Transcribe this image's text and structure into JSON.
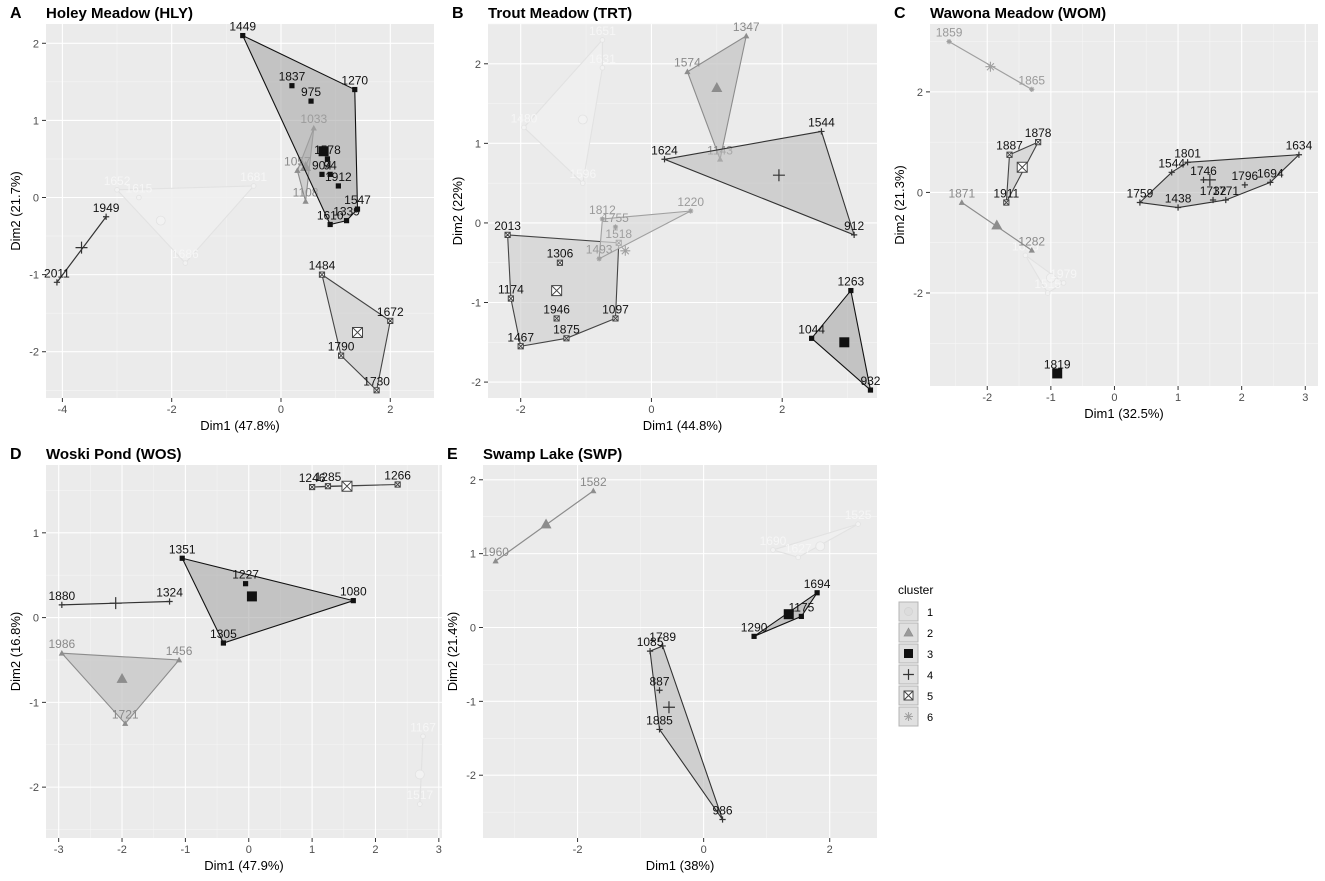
{
  "legend": {
    "title": "cluster",
    "entries": [
      {
        "label": "1",
        "symbol": "dot",
        "fill": "#dcdcdc",
        "stroke": "#d2d2d2"
      },
      {
        "label": "2",
        "symbol": "triangle",
        "fill": "#9a9a9a",
        "stroke": "#8a8a8a"
      },
      {
        "label": "3",
        "symbol": "square",
        "fill": "#111111",
        "stroke": "#111111"
      },
      {
        "label": "4",
        "symbol": "plus",
        "fill": "#444444",
        "stroke": "#333333"
      },
      {
        "label": "5",
        "symbol": "boxx",
        "fill": "#777777",
        "stroke": "#444444"
      },
      {
        "label": "6",
        "symbol": "asterisk",
        "fill": "#c4c4c4",
        "stroke": "#a2a2a2"
      }
    ]
  },
  "chart_data": [
    {
      "type": "scatter",
      "panel_letter": "A",
      "title": "Holey Meadow (HLY)",
      "xlabel": "Dim1 (47.8%)",
      "ylabel": "Dim2 (21.7%)",
      "xlim": [
        -4.3,
        2.8
      ],
      "ylim": [
        -2.6,
        2.25
      ],
      "xticks": [
        -4,
        -2,
        0,
        2
      ],
      "yticks": [
        -2,
        -1,
        0,
        1,
        2
      ],
      "grid": true,
      "clusters": [
        {
          "cluster": "1",
          "centroid": [
            -2.2,
            -0.3
          ],
          "points": [
            {
              "label": "1652",
              "x": -3.0,
              "y": 0.1
            },
            {
              "label": "1681",
              "x": -0.5,
              "y": 0.15
            },
            {
              "label": "1686",
              "x": -1.75,
              "y": -0.85
            },
            {
              "label": "1615",
              "x": -2.6,
              "y": 0.0
            }
          ]
        },
        {
          "cluster": "2",
          "centroid": [
            0.45,
            0.4
          ],
          "points": [
            {
              "label": "1033",
              "x": 0.6,
              "y": 0.9
            },
            {
              "label": "1057",
              "x": 0.3,
              "y": 0.35
            },
            {
              "label": "1108",
              "x": 0.45,
              "y": -0.05
            }
          ]
        },
        {
          "cluster": "3",
          "centroid": [
            0.78,
            0.6
          ],
          "points": [
            {
              "label": "1449",
              "x": -0.7,
              "y": 2.1
            },
            {
              "label": "1837",
              "x": 0.2,
              "y": 1.45
            },
            {
              "label": "975",
              "x": 0.55,
              "y": 1.25
            },
            {
              "label": "1270",
              "x": 1.35,
              "y": 1.4
            },
            {
              "label": "1578",
              "x": 0.85,
              "y": 0.5
            },
            {
              "label": "904",
              "x": 0.75,
              "y": 0.3
            },
            {
              "label": "94",
              "x": 0.9,
              "y": 0.3
            },
            {
              "label": "1912",
              "x": 1.05,
              "y": 0.15
            },
            {
              "label": "1547",
              "x": 1.4,
              "y": -0.15
            },
            {
              "label": "1339",
              "x": 1.2,
              "y": -0.3
            },
            {
              "label": "1610",
              "x": 0.9,
              "y": -0.35
            }
          ]
        },
        {
          "cluster": "4",
          "centroid": [
            -3.65,
            -0.65
          ],
          "points": [
            {
              "label": "1949",
              "x": -3.2,
              "y": -0.25
            },
            {
              "label": "2011",
              "x": -4.1,
              "y": -1.1
            }
          ]
        },
        {
          "cluster": "5",
          "centroid": [
            1.4,
            -1.75
          ],
          "points": [
            {
              "label": "1484",
              "x": 0.75,
              "y": -1.0
            },
            {
              "label": "1672",
              "x": 2.0,
              "y": -1.6
            },
            {
              "label": "1790",
              "x": 1.1,
              "y": -2.05
            },
            {
              "label": "1730",
              "x": 1.75,
              "y": -2.5
            }
          ]
        }
      ]
    },
    {
      "type": "scatter",
      "panel_letter": "B",
      "title": "Trout Meadow (TRT)",
      "xlabel": "Dim1 (44.8%)",
      "ylabel": "Dim2 (22%)",
      "xlim": [
        -2.5,
        3.45
      ],
      "ylim": [
        -2.2,
        2.5
      ],
      "xticks": [
        -2,
        0,
        2
      ],
      "yticks": [
        -2,
        -1,
        0,
        1,
        2
      ],
      "grid": true,
      "clusters": [
        {
          "cluster": "1",
          "centroid": [
            -1.05,
            1.3
          ],
          "points": [
            {
              "label": "1651",
              "x": -0.75,
              "y": 2.3
            },
            {
              "label": "1631",
              "x": -0.75,
              "y": 1.95
            },
            {
              "label": "1480",
              "x": -1.95,
              "y": 1.2
            },
            {
              "label": "1596",
              "x": -1.05,
              "y": 0.5
            }
          ]
        },
        {
          "cluster": "2",
          "centroid": [
            1.0,
            1.7
          ],
          "points": [
            {
              "label": "1347",
              "x": 1.45,
              "y": 2.35
            },
            {
              "label": "1574",
              "x": 0.55,
              "y": 1.9
            },
            {
              "label": "1143",
              "x": 1.05,
              "y": 0.8
            }
          ]
        },
        {
          "cluster": "3",
          "centroid": [
            2.95,
            -1.5
          ],
          "points": [
            {
              "label": "1263",
              "x": 3.05,
              "y": -0.85
            },
            {
              "label": "1044",
              "x": 2.45,
              "y": -1.45
            },
            {
              "label": "932",
              "x": 3.35,
              "y": -2.1
            }
          ]
        },
        {
          "cluster": "4",
          "centroid": [
            1.95,
            0.6
          ],
          "points": [
            {
              "label": "1624",
              "x": 0.2,
              "y": 0.8
            },
            {
              "label": "1544",
              "x": 2.6,
              "y": 1.15
            },
            {
              "label": "912",
              "x": 3.1,
              "y": -0.15
            }
          ]
        },
        {
          "cluster": "5",
          "centroid": [
            -1.45,
            -0.85
          ],
          "points": [
            {
              "label": "2013",
              "x": -2.2,
              "y": -0.15
            },
            {
              "label": "1306",
              "x": -1.4,
              "y": -0.5
            },
            {
              "label": "1518",
              "x": -0.5,
              "y": -0.25
            },
            {
              "label": "1174",
              "x": -2.15,
              "y": -0.95
            },
            {
              "label": "1946",
              "x": -1.45,
              "y": -1.2
            },
            {
              "label": "1097",
              "x": -0.55,
              "y": -1.2
            },
            {
              "label": "1875",
              "x": -1.3,
              "y": -1.45
            },
            {
              "label": "1467",
              "x": -2.0,
              "y": -1.55
            }
          ]
        },
        {
          "cluster": "6",
          "centroid": [
            -0.4,
            -0.35
          ],
          "points": [
            {
              "label": "1812",
              "x": -0.75,
              "y": 0.05
            },
            {
              "label": "1755",
              "x": -0.55,
              "y": -0.05
            },
            {
              "label": "1220",
              "x": 0.6,
              "y": 0.15
            },
            {
              "label": "1493",
              "x": -0.8,
              "y": -0.45
            }
          ]
        }
      ]
    },
    {
      "type": "scatter",
      "panel_letter": "C",
      "title": "Wawona Meadow (WOM)",
      "xlabel": "Dim1 (32.5%)",
      "ylabel": "Dim2 (21.3%)",
      "xlim": [
        -2.9,
        3.2
      ],
      "ylim": [
        -3.85,
        3.35
      ],
      "xticks": [
        -2,
        -1,
        0,
        1,
        2,
        3
      ],
      "yticks": [
        -2,
        0,
        2
      ],
      "grid": true,
      "clusters": [
        {
          "cluster": "1",
          "centroid": [
            -1.0,
            -1.7
          ],
          "points": [
            {
              "label": "1605",
              "x": -1.4,
              "y": -1.25
            },
            {
              "label": "1979",
              "x": -0.8,
              "y": -1.8
            },
            {
              "label": "1515",
              "x": -1.05,
              "y": -2.0
            }
          ]
        },
        {
          "cluster": "2",
          "centroid": [
            -1.85,
            -0.65
          ],
          "points": [
            {
              "label": "1871",
              "x": -2.4,
              "y": -0.2
            },
            {
              "label": "1282",
              "x": -1.3,
              "y": -1.15
            }
          ]
        },
        {
          "cluster": "3",
          "centroid": [
            -0.9,
            -3.6
          ],
          "points": [
            {
              "label": "1819",
              "x": -0.9,
              "y": -3.6
            }
          ]
        },
        {
          "cluster": "4",
          "centroid": [
            1.5,
            0.25
          ],
          "points": [
            {
              "label": "1634",
              "x": 2.9,
              "y": 0.75
            },
            {
              "label": "1801",
              "x": 1.15,
              "y": 0.6
            },
            {
              "label": "1544",
              "x": 0.9,
              "y": 0.4
            },
            {
              "label": "1746",
              "x": 1.4,
              "y": 0.25
            },
            {
              "label": "1796",
              "x": 2.05,
              "y": 0.15
            },
            {
              "label": "1694",
              "x": 2.45,
              "y": 0.2
            },
            {
              "label": "1759",
              "x": 0.4,
              "y": -0.2
            },
            {
              "label": "1438",
              "x": 1.0,
              "y": -0.3
            },
            {
              "label": "1732",
              "x": 1.55,
              "y": -0.15
            },
            {
              "label": "1771",
              "x": 1.75,
              "y": -0.15
            }
          ]
        },
        {
          "cluster": "5",
          "centroid": [
            -1.45,
            0.5
          ],
          "points": [
            {
              "label": "1887",
              "x": -1.65,
              "y": 0.75
            },
            {
              "label": "1878",
              "x": -1.2,
              "y": 1.0
            },
            {
              "label": "1911",
              "x": -1.7,
              "y": -0.2
            }
          ]
        },
        {
          "cluster": "6",
          "centroid": [
            -1.95,
            2.5
          ],
          "points": [
            {
              "label": "1859",
              "x": -2.6,
              "y": 3.0
            },
            {
              "label": "1865",
              "x": -1.3,
              "y": 2.05
            }
          ]
        }
      ]
    },
    {
      "type": "scatter",
      "panel_letter": "D",
      "title": "Woski Pond (WOS)",
      "xlabel": "Dim1 (47.9%)",
      "ylabel": "Dim2 (16.8%)",
      "xlim": [
        -3.2,
        3.05
      ],
      "ylim": [
        -2.6,
        1.8
      ],
      "xticks": [
        -3,
        -2,
        -1,
        0,
        1,
        2,
        3
      ],
      "yticks": [
        -2,
        -1,
        0,
        1
      ],
      "grid": true,
      "clusters": [
        {
          "cluster": "1",
          "centroid": [
            2.7,
            -1.85
          ],
          "points": [
            {
              "label": "1167",
              "x": 2.75,
              "y": -1.4
            },
            {
              "label": "1517",
              "x": 2.7,
              "y": -2.2
            }
          ]
        },
        {
          "cluster": "2",
          "centroid": [
            -2.0,
            -0.72
          ],
          "points": [
            {
              "label": "1986",
              "x": -2.95,
              "y": -0.42
            },
            {
              "label": "1456",
              "x": -1.1,
              "y": -0.5
            },
            {
              "label": "1721",
              "x": -1.95,
              "y": -1.25
            }
          ]
        },
        {
          "cluster": "3",
          "centroid": [
            0.05,
            0.25
          ],
          "points": [
            {
              "label": "1351",
              "x": -1.05,
              "y": 0.7
            },
            {
              "label": "1227",
              "x": -0.05,
              "y": 0.4
            },
            {
              "label": "1080",
              "x": 1.65,
              "y": 0.2
            },
            {
              "label": "1305",
              "x": -0.4,
              "y": -0.3
            }
          ]
        },
        {
          "cluster": "4",
          "centroid": [
            -2.1,
            0.17
          ],
          "points": [
            {
              "label": "1880",
              "x": -2.95,
              "y": 0.15
            },
            {
              "label": "1324",
              "x": -1.25,
              "y": 0.19
            }
          ]
        },
        {
          "cluster": "5",
          "centroid": [
            1.55,
            1.55
          ],
          "points": [
            {
              "label": "1246",
              "x": 1.0,
              "y": 1.54
            },
            {
              "label": "1285",
              "x": 1.25,
              "y": 1.55
            },
            {
              "label": "1266",
              "x": 2.35,
              "y": 1.57
            }
          ]
        }
      ]
    },
    {
      "type": "scatter",
      "panel_letter": "E",
      "title": "Swamp Lake (SWP)",
      "xlabel": "Dim1 (38%)",
      "ylabel": "Dim2 (21.4%)",
      "xlim": [
        -3.5,
        2.75
      ],
      "ylim": [
        -2.85,
        2.2
      ],
      "xticks": [
        -2,
        0,
        2
      ],
      "yticks": [
        -2,
        -1,
        0,
        1,
        2
      ],
      "grid": true,
      "clusters": [
        {
          "cluster": "1",
          "centroid": [
            1.85,
            1.1
          ],
          "points": [
            {
              "label": "1525",
              "x": 2.45,
              "y": 1.4
            },
            {
              "label": "1690",
              "x": 1.1,
              "y": 1.05
            },
            {
              "label": "1627",
              "x": 1.5,
              "y": 0.95
            }
          ]
        },
        {
          "cluster": "2",
          "centroid": [
            -2.5,
            1.4
          ],
          "points": [
            {
              "label": "1582",
              "x": -1.75,
              "y": 1.85
            },
            {
              "label": "1960",
              "x": -3.3,
              "y": 0.9
            }
          ]
        },
        {
          "cluster": "3",
          "centroid": [
            1.35,
            0.18
          ],
          "points": [
            {
              "label": "1694",
              "x": 1.8,
              "y": 0.47
            },
            {
              "label": "1175",
              "x": 1.55,
              "y": 0.15
            },
            {
              "label": "1290",
              "x": 0.8,
              "y": -0.12
            }
          ]
        },
        {
          "cluster": "4",
          "centroid": [
            -0.55,
            -1.08
          ],
          "points": [
            {
              "label": "1085",
              "x": -0.85,
              "y": -0.32
            },
            {
              "label": "1789",
              "x": -0.65,
              "y": -0.25
            },
            {
              "label": "887",
              "x": -0.7,
              "y": -0.85
            },
            {
              "label": "1885",
              "x": -0.7,
              "y": -1.38
            },
            {
              "label": "986",
              "x": 0.3,
              "y": -2.6
            }
          ]
        }
      ]
    }
  ]
}
